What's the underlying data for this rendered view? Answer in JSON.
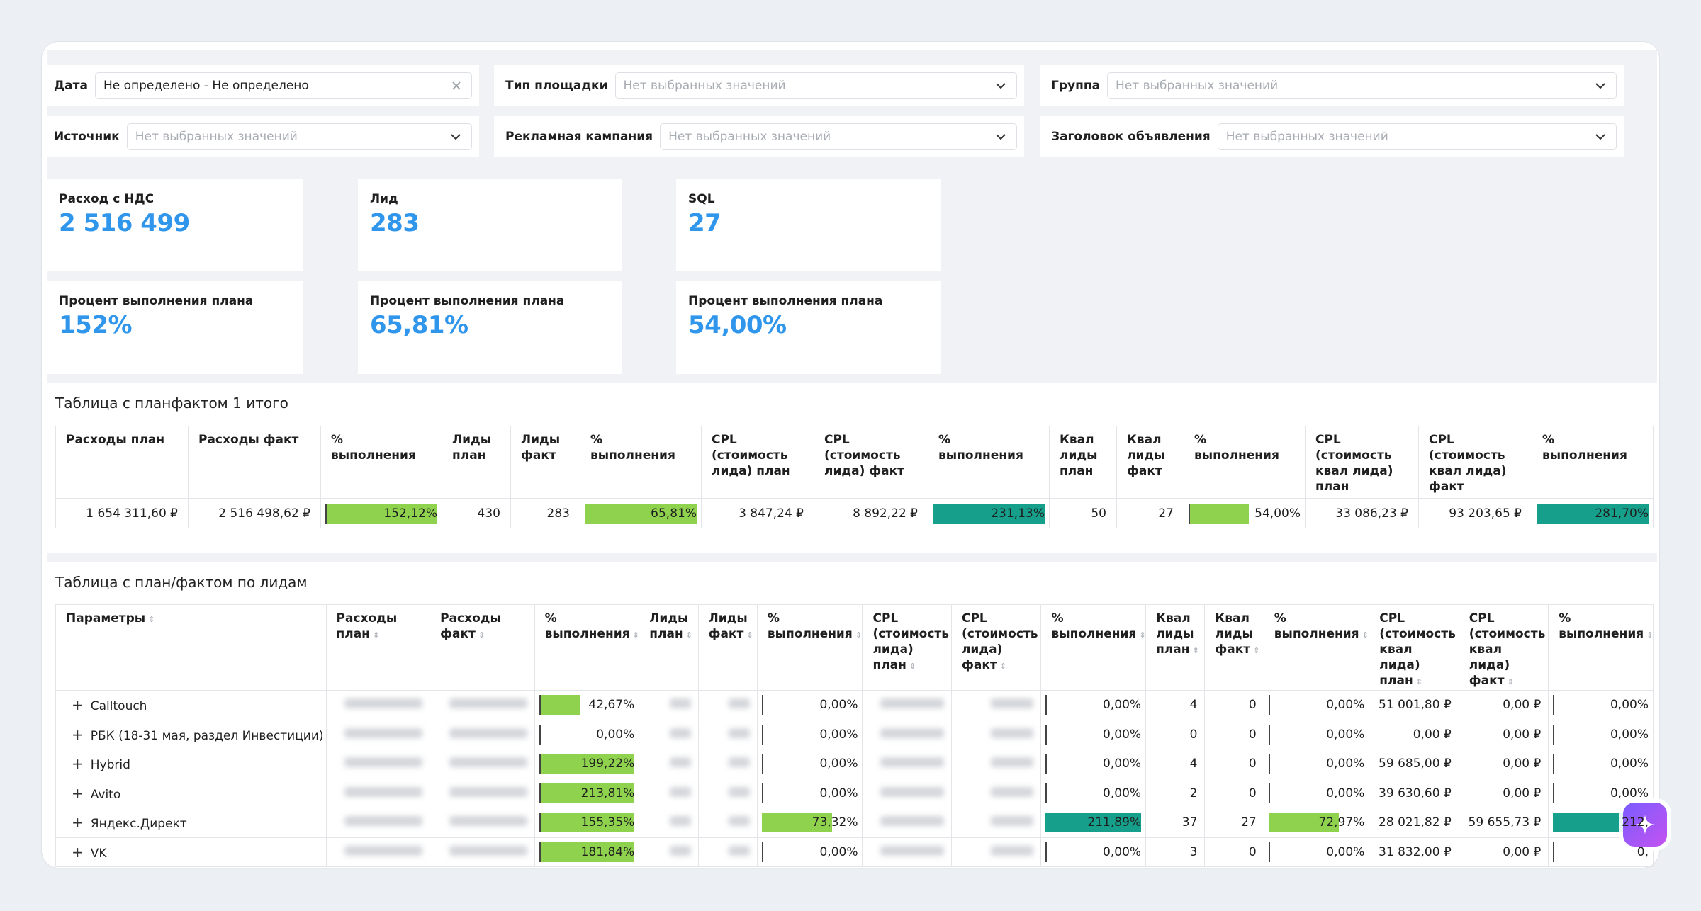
{
  "filters": {
    "date": {
      "label": "Дата",
      "value": "Не определено - Не определено"
    },
    "site_type": {
      "label": "Тип площадки",
      "placeholder": "Нет выбранных значений"
    },
    "group": {
      "label": "Группа",
      "placeholder": "Нет выбранных значений"
    },
    "source": {
      "label": "Источник",
      "placeholder": "Нет выбранных значений"
    },
    "campaign": {
      "label": "Рекламная кампания",
      "placeholder": "Нет выбранных значений"
    },
    "ad_title": {
      "label": "Заголовок объявления",
      "placeholder": "Нет выбранных значений"
    }
  },
  "kpis": {
    "spend": {
      "label": "Расход с НДС",
      "value": "2 516 499"
    },
    "leads": {
      "label": "Лид",
      "value": "283"
    },
    "sql": {
      "label": "SQL",
      "value": "27"
    },
    "spend_plan": {
      "label": "Процент выполнения плана",
      "value": "152%"
    },
    "leads_plan": {
      "label": "Процент выполнения плана",
      "value": "65,81%"
    },
    "sql_plan": {
      "label": "Процент выполнения плана",
      "value": "54,00%"
    }
  },
  "table1": {
    "title": "Таблица с планфактом 1 итого",
    "headers": [
      "Расходы план",
      "Расходы факт",
      "% выполнения",
      "Лиды план",
      "Лиды факт",
      "% выполнения",
      "CPL (стоимость лида) план",
      "CPL (стоимость лида) факт",
      "% выполнения",
      "Квал лиды план",
      "Квал лиды факт",
      "% выполнения",
      "CPL (стоимость квал лида) план",
      "CPL (стоимость квал лида) факт",
      "% выполнения"
    ],
    "row": {
      "spend_plan": "1 654 311,60 ₽",
      "spend_fact": "2 516 498,62 ₽",
      "spend_pct": "152,12%",
      "leads_plan": "430",
      "leads_fact": "283",
      "leads_pct": "65,81%",
      "cpl_plan": "3 847,24 ₽",
      "cpl_fact": "8 892,22 ₽",
      "cpl_pct": "231,13%",
      "qual_plan": "50",
      "qual_fact": "27",
      "qual_pct": "54,00%",
      "qcpl_plan": "33 086,23 ₽",
      "qcpl_fact": "93 203,65 ₽",
      "qcpl_pct": "281,70%"
    }
  },
  "table2": {
    "title": "Таблица с план/фактом по лидам",
    "headers": [
      "Параметры",
      "Расходы план",
      "Расходы факт",
      "% выполнения",
      "Лиды план",
      "Лиды факт",
      "% выполнения",
      "CPL (стоимость лида) план",
      "CPL (стоимость лида) факт",
      "% выполнения",
      "Квал лиды план",
      "Квал лиды факт",
      "% выполнения",
      "CPL (стоимость квал лида) план",
      "CPL (стоимость квал лида) факт",
      "% выполнения"
    ],
    "rows": [
      {
        "name": "Calltouch",
        "spend_pct": "42,67%",
        "spend_ratio": 0.4267,
        "spend_color": "green",
        "leads_pct": "0,00%",
        "cpl_pct": "0,00%",
        "qual_plan": "4",
        "qual_fact": "0",
        "qual_pct": "0,00%",
        "qcpl_plan": "51 001,80 ₽",
        "qcpl_fact": "0,00 ₽",
        "qcpl_pct": "0,00%"
      },
      {
        "name": "РБК (18-31 мая, раздел Инвестиции)",
        "spend_pct": "0,00%",
        "spend_ratio": 0,
        "spend_color": "green",
        "leads_pct": "0,00%",
        "cpl_pct": "0,00%",
        "qual_plan": "0",
        "qual_fact": "0",
        "qual_pct": "0,00%",
        "qcpl_plan": "0,00 ₽",
        "qcpl_fact": "0,00 ₽",
        "qcpl_pct": "0,00%"
      },
      {
        "name": "Hybrid",
        "spend_pct": "199,22%",
        "spend_ratio": 1.9922,
        "spend_color": "green",
        "leads_pct": "0,00%",
        "cpl_pct": "0,00%",
        "qual_plan": "4",
        "qual_fact": "0",
        "qual_pct": "0,00%",
        "qcpl_plan": "59 685,00 ₽",
        "qcpl_fact": "0,00 ₽",
        "qcpl_pct": "0,00%"
      },
      {
        "name": "Avito",
        "spend_pct": "213,81%",
        "spend_ratio": 2.1381,
        "spend_color": "green",
        "leads_pct": "0,00%",
        "cpl_pct": "0,00%",
        "qual_plan": "2",
        "qual_fact": "0",
        "qual_pct": "0,00%",
        "qcpl_plan": "39 630,60 ₽",
        "qcpl_fact": "0,00 ₽",
        "qcpl_pct": "0,00%"
      },
      {
        "name": "Яндекс.Директ",
        "spend_pct": "155,35%",
        "spend_ratio": 1.5535,
        "spend_color": "green",
        "leads_pct": "73,32%",
        "leads_ratio": 0.7332,
        "cpl_pct": "211,89%",
        "cpl_ratio": 2.1189,
        "qual_plan": "37",
        "qual_fact": "27",
        "qual_pct": "72,97%",
        "qual_ratio": 0.7297,
        "qcpl_plan": "28 021,82 ₽",
        "qcpl_fact": "59 655,73 ₽",
        "qcpl_pct": "212,"
      },
      {
        "name": "VK",
        "spend_pct": "181,84%",
        "spend_ratio": 1.8184,
        "spend_color": "green",
        "leads_pct": "0,00%",
        "cpl_pct": "0,00%",
        "qual_plan": "3",
        "qual_fact": "0",
        "qual_pct": "0,00%",
        "qcpl_plan": "31 832,00 ₽",
        "qcpl_fact": "0,00 ₽",
        "qcpl_pct": "0,"
      }
    ]
  },
  "colors": {
    "accent": "#2f96ec",
    "bar_green": "#8fd24e",
    "bar_teal": "#16a08b"
  },
  "icons": {
    "clear": "close-icon",
    "dropdown": "chevron-down-icon",
    "expand": "plus-icon",
    "assistant": "sparkle-icon"
  }
}
